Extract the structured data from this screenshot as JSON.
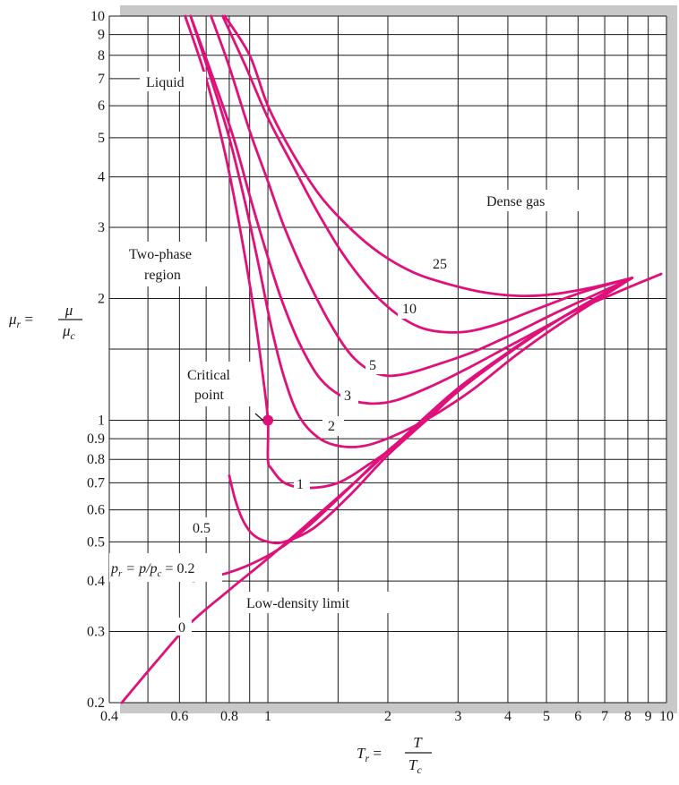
{
  "chart_data": {
    "type": "line",
    "title": "",
    "xlabel": {
      "lhs": "T",
      "lhs_sub": "r",
      "num": "T",
      "den": "T",
      "den_sub": "c"
    },
    "ylabel": {
      "lhs": "μ",
      "lhs_sub": "r",
      "num": "μ",
      "den": "μ",
      "den_sub": "c"
    },
    "x_scale": "log",
    "y_scale": "log",
    "xlim": [
      0.4,
      10
    ],
    "ylim": [
      0.2,
      10
    ],
    "grid": true,
    "x_ticks": [
      {
        "value": 0.4,
        "label": "0.4"
      },
      {
        "value": 0.5,
        "label": ""
      },
      {
        "value": 0.6,
        "label": "0.6"
      },
      {
        "value": 0.7,
        "label": ""
      },
      {
        "value": 0.8,
        "label": "0.8"
      },
      {
        "value": 0.9,
        "label": ""
      },
      {
        "value": 1,
        "label": "1"
      },
      {
        "value": 1.5,
        "label": ""
      },
      {
        "value": 2,
        "label": "2"
      },
      {
        "value": 3,
        "label": "3"
      },
      {
        "value": 4,
        "label": "4"
      },
      {
        "value": 5,
        "label": "5"
      },
      {
        "value": 6,
        "label": "6"
      },
      {
        "value": 7,
        "label": "7"
      },
      {
        "value": 8,
        "label": "8"
      },
      {
        "value": 9,
        "label": "9"
      },
      {
        "value": 10,
        "label": "10"
      }
    ],
    "y_ticks": [
      {
        "value": 0.2,
        "label": "0.2"
      },
      {
        "value": 0.3,
        "label": "0.3"
      },
      {
        "value": 0.4,
        "label": "0.4"
      },
      {
        "value": 0.5,
        "label": "0.5"
      },
      {
        "value": 0.6,
        "label": "0.6"
      },
      {
        "value": 0.7,
        "label": "0.7"
      },
      {
        "value": 0.8,
        "label": "0.8"
      },
      {
        "value": 0.9,
        "label": "0.9"
      },
      {
        "value": 1,
        "label": "1"
      },
      {
        "value": 1.5,
        "label": ""
      },
      {
        "value": 2,
        "label": "2"
      },
      {
        "value": 3,
        "label": "3"
      },
      {
        "value": 4,
        "label": "4"
      },
      {
        "value": 5,
        "label": "5"
      },
      {
        "value": 6,
        "label": "6"
      },
      {
        "value": 7,
        "label": "7"
      },
      {
        "value": 8,
        "label": "8"
      },
      {
        "value": 9,
        "label": "9"
      },
      {
        "value": 10,
        "label": "10"
      }
    ],
    "series": [
      {
        "label": "0",
        "points": [
          [
            0.43,
            0.2
          ],
          [
            0.52,
            0.25
          ],
          [
            0.64,
            0.315
          ],
          [
            0.8,
            0.38
          ],
          [
            1.0,
            0.455
          ],
          [
            1.3,
            0.57
          ],
          [
            1.7,
            0.72
          ],
          [
            2.3,
            0.95
          ],
          [
            3.0,
            1.2
          ],
          [
            4.0,
            1.47
          ],
          [
            5.5,
            1.8
          ],
          [
            7.5,
            2.07
          ],
          [
            9.7,
            2.3
          ]
        ]
      },
      {
        "label": "0.2",
        "points": [
          [
            0.65,
            0.4
          ],
          [
            0.8,
            0.42
          ],
          [
            0.95,
            0.45
          ],
          [
            1.1,
            0.49
          ],
          [
            1.3,
            0.56
          ],
          [
            1.6,
            0.68
          ],
          [
            2.0,
            0.84
          ],
          [
            2.5,
            1.0
          ],
          [
            3.0,
            1.18
          ],
          [
            4.0,
            1.47
          ],
          [
            5.5,
            1.8
          ],
          [
            8.2,
            2.25
          ]
        ]
      },
      {
        "label": "0.5",
        "points": [
          [
            0.8,
            0.73
          ],
          [
            0.83,
            0.63
          ],
          [
            0.87,
            0.56
          ],
          [
            0.92,
            0.52
          ],
          [
            1.0,
            0.5
          ],
          [
            1.1,
            0.5
          ],
          [
            1.3,
            0.54
          ],
          [
            1.6,
            0.65
          ],
          [
            2.0,
            0.82
          ],
          [
            2.5,
            1.0
          ],
          [
            3.0,
            1.18
          ],
          [
            4.0,
            1.47
          ],
          [
            5.5,
            1.8
          ],
          [
            8.2,
            2.25
          ]
        ]
      },
      {
        "label": "1",
        "points": [
          [
            0.62,
            10
          ],
          [
            0.7,
            7.0
          ],
          [
            0.78,
            4.6
          ],
          [
            0.85,
            3.0
          ],
          [
            0.92,
            1.9
          ],
          [
            0.97,
            1.3
          ],
          [
            1.0,
            1.0
          ],
          [
            1.0,
            0.8
          ],
          [
            1.02,
            0.76
          ],
          [
            1.1,
            0.7
          ],
          [
            1.25,
            0.68
          ],
          [
            1.5,
            0.7
          ],
          [
            1.8,
            0.78
          ],
          [
            2.2,
            0.9
          ],
          [
            3.0,
            1.18
          ],
          [
            4.0,
            1.46
          ],
          [
            5.5,
            1.8
          ],
          [
            8.2,
            2.25
          ]
        ]
      },
      {
        "label": "2",
        "points": [
          [
            0.64,
            10
          ],
          [
            0.72,
            7.0
          ],
          [
            0.8,
            5.0
          ],
          [
            0.88,
            3.4
          ],
          [
            0.95,
            2.4
          ],
          [
            1.02,
            1.7
          ],
          [
            1.1,
            1.27
          ],
          [
            1.2,
            1.02
          ],
          [
            1.35,
            0.9
          ],
          [
            1.55,
            0.86
          ],
          [
            1.8,
            0.87
          ],
          [
            2.2,
            0.94
          ],
          [
            2.7,
            1.05
          ],
          [
            3.3,
            1.2
          ],
          [
            4.2,
            1.45
          ],
          [
            5.5,
            1.75
          ],
          [
            8.2,
            2.25
          ]
        ]
      },
      {
        "label": "3",
        "points": [
          [
            0.64,
            10
          ],
          [
            0.73,
            7.0
          ],
          [
            0.82,
            5.0
          ],
          [
            0.9,
            3.6
          ],
          [
            0.98,
            2.7
          ],
          [
            1.08,
            2.0
          ],
          [
            1.2,
            1.55
          ],
          [
            1.35,
            1.27
          ],
          [
            1.55,
            1.14
          ],
          [
            1.8,
            1.1
          ],
          [
            2.1,
            1.12
          ],
          [
            2.6,
            1.22
          ],
          [
            3.2,
            1.35
          ],
          [
            4.0,
            1.52
          ],
          [
            5.5,
            1.8
          ],
          [
            8.2,
            2.25
          ]
        ]
      },
      {
        "label": "5",
        "points": [
          [
            0.72,
            10
          ],
          [
            0.8,
            7.5
          ],
          [
            0.9,
            5.2
          ],
          [
            1.0,
            3.9
          ],
          [
            1.1,
            3.0
          ],
          [
            1.25,
            2.25
          ],
          [
            1.45,
            1.7
          ],
          [
            1.65,
            1.42
          ],
          [
            1.9,
            1.3
          ],
          [
            2.2,
            1.3
          ],
          [
            2.7,
            1.38
          ],
          [
            3.3,
            1.48
          ],
          [
            4.2,
            1.65
          ],
          [
            5.5,
            1.88
          ],
          [
            8.2,
            2.25
          ]
        ]
      },
      {
        "label": "10",
        "points": [
          [
            0.77,
            10
          ],
          [
            0.88,
            7.5
          ],
          [
            1.0,
            5.6
          ],
          [
            1.15,
            4.3
          ],
          [
            1.35,
            3.2
          ],
          [
            1.6,
            2.45
          ],
          [
            1.95,
            1.95
          ],
          [
            2.4,
            1.7
          ],
          [
            3.0,
            1.65
          ],
          [
            3.7,
            1.72
          ],
          [
            4.7,
            1.88
          ],
          [
            6.2,
            2.08
          ],
          [
            8.2,
            2.25
          ]
        ]
      },
      {
        "label": "25",
        "points": [
          [
            0.78,
            10
          ],
          [
            0.9,
            8.0
          ],
          [
            1.0,
            6.0
          ],
          [
            1.15,
            4.6
          ],
          [
            1.35,
            3.6
          ],
          [
            1.6,
            3.0
          ],
          [
            1.9,
            2.6
          ],
          [
            2.3,
            2.33
          ],
          [
            2.8,
            2.18
          ],
          [
            3.5,
            2.07
          ],
          [
            4.3,
            2.03
          ],
          [
            5.2,
            2.05
          ],
          [
            6.5,
            2.13
          ],
          [
            8.2,
            2.25
          ]
        ]
      }
    ],
    "critical_point": {
      "x": 1,
      "y": 1
    },
    "annotations": {
      "liquid": "Liquid",
      "dense_gas": "Dense gas",
      "two_phase_1": "Two-phase",
      "two_phase_2": "region",
      "critical_1": "Critical",
      "critical_2": "point",
      "low_density": "Low-density limit",
      "pr_lhs": "p",
      "pr_lhs_sub": "r",
      "pr_mid": " = p/p",
      "pr_mid_sub": "c",
      "pr_val": " = 0.2",
      "lab_25": "25",
      "lab_10": "10",
      "lab_5": "5",
      "lab_3": "3",
      "lab_2": "2",
      "lab_1": "1",
      "lab_05": "0.5",
      "lab_0": "0"
    },
    "colors": {
      "curve": "#e0107a",
      "grid": "#1a1a1a",
      "shadow": "#c8c8c8"
    }
  }
}
